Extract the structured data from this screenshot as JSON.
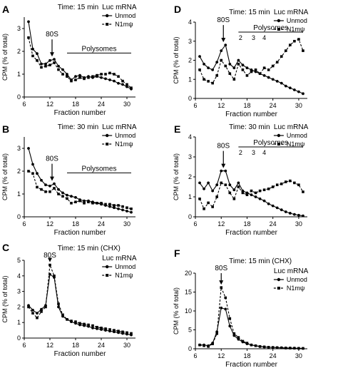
{
  "chart_data": [
    {
      "panel": "A",
      "type": "line",
      "time_label": "Time: 15 min",
      "mrna_label": "Luc mRNA",
      "ylabel": "CPM (% of total)",
      "xlabel": "Fraction number",
      "xlim": [
        6,
        32
      ],
      "xticks": [
        6,
        12,
        18,
        24,
        30
      ],
      "ylim": [
        0,
        3.5
      ],
      "yticks": [
        0,
        1,
        2,
        3
      ],
      "x": [
        7,
        8,
        9,
        10,
        11,
        12,
        13,
        14,
        15,
        16,
        17,
        18,
        19,
        20,
        21,
        22,
        23,
        24,
        25,
        26,
        27,
        28,
        29,
        30,
        31
      ],
      "series": [
        {
          "name": "Unmod",
          "values": [
            3.3,
            2.1,
            1.9,
            1.45,
            1.45,
            1.6,
            1.65,
            1.35,
            1.2,
            1.0,
            0.75,
            0.9,
            0.95,
            0.85,
            0.9,
            0.85,
            0.9,
            0.85,
            0.8,
            0.75,
            0.7,
            0.6,
            0.55,
            0.45,
            0.35
          ]
        },
        {
          "name": "N1mψ",
          "values": [
            2.6,
            1.8,
            1.6,
            1.3,
            1.35,
            1.4,
            1.5,
            1.2,
            1.0,
            0.9,
            0.7,
            0.75,
            0.85,
            0.8,
            0.85,
            0.9,
            0.95,
            1.0,
            1.0,
            1.05,
            1.0,
            0.9,
            0.7,
            0.55,
            0.4
          ]
        }
      ],
      "annotations": {
        "peak": "80S",
        "peak_x": 12.5,
        "region": "Polysomes",
        "region_x": [
          16,
          31
        ]
      }
    },
    {
      "panel": "B",
      "type": "line",
      "time_label": "Time: 30 min",
      "mrna_label": "Luc mRNA",
      "ylabel": "CPM (% of total)",
      "xlabel": "Fraction number",
      "xlim": [
        6,
        32
      ],
      "xticks": [
        6,
        12,
        18,
        24,
        30
      ],
      "ylim": [
        0,
        3.5
      ],
      "yticks": [
        0,
        1,
        2,
        3
      ],
      "x": [
        7,
        8,
        9,
        10,
        11,
        12,
        13,
        14,
        15,
        16,
        17,
        18,
        19,
        20,
        21,
        22,
        23,
        24,
        25,
        26,
        27,
        28,
        29,
        30,
        31
      ],
      "series": [
        {
          "name": "Unmod",
          "values": [
            3.0,
            2.3,
            1.9,
            1.6,
            1.4,
            1.35,
            1.45,
            1.2,
            1.05,
            0.95,
            0.9,
            0.85,
            0.75,
            0.7,
            0.7,
            0.65,
            0.6,
            0.55,
            0.5,
            0.45,
            0.4,
            0.35,
            0.3,
            0.25,
            0.2
          ]
        },
        {
          "name": "N1mψ",
          "values": [
            2.0,
            1.9,
            1.3,
            1.2,
            1.1,
            1.1,
            1.25,
            1.0,
            0.9,
            0.8,
            0.6,
            0.65,
            0.7,
            0.6,
            0.65,
            0.6,
            0.6,
            0.6,
            0.55,
            0.55,
            0.5,
            0.5,
            0.45,
            0.4,
            0.35
          ]
        }
      ],
      "annotations": {
        "peak": "80S",
        "peak_x": 12.5,
        "region": "Polysomes",
        "region_x": [
          16,
          31
        ]
      }
    },
    {
      "panel": "C",
      "type": "line",
      "time_label": "Time: 15 min (CHX)",
      "mrna_label": "Luc mRNA",
      "ylabel": "CPM (% of total)",
      "xlabel": "Fraction number",
      "xlim": [
        6,
        32
      ],
      "xticks": [
        6,
        12,
        18,
        24,
        30
      ],
      "ylim": [
        0,
        5
      ],
      "yticks": [
        0,
        1,
        2,
        3,
        4,
        5
      ],
      "x": [
        7,
        8,
        9,
        10,
        11,
        12,
        13,
        14,
        15,
        16,
        17,
        18,
        19,
        20,
        21,
        22,
        23,
        24,
        25,
        26,
        27,
        28,
        29,
        30,
        31
      ],
      "series": [
        {
          "name": "Unmod",
          "values": [
            2.1,
            1.8,
            1.6,
            1.85,
            2.1,
            4.1,
            3.9,
            2.0,
            1.4,
            1.2,
            1.05,
            0.95,
            0.85,
            0.8,
            0.75,
            0.65,
            0.6,
            0.55,
            0.5,
            0.45,
            0.4,
            0.35,
            0.3,
            0.25,
            0.2
          ]
        },
        {
          "name": "N1mψ",
          "values": [
            2.0,
            1.6,
            1.3,
            1.7,
            2.0,
            4.7,
            4.0,
            2.2,
            1.5,
            1.2,
            1.1,
            1.05,
            0.95,
            0.9,
            0.85,
            0.8,
            0.7,
            0.65,
            0.6,
            0.55,
            0.5,
            0.45,
            0.4,
            0.35,
            0.3
          ]
        }
      ],
      "annotations": {
        "peak": "80S",
        "peak_x": 12
      }
    },
    {
      "panel": "D",
      "type": "line",
      "time_label": "Time: 15 min",
      "mrna_label": "Luc mRNA",
      "ylabel": "CPM (% of total)",
      "xlabel": "Fraction number",
      "xlim": [
        6,
        32
      ],
      "xticks": [
        6,
        12,
        18,
        24,
        30
      ],
      "ylim": [
        0,
        4
      ],
      "yticks": [
        0,
        1,
        2,
        3,
        4
      ],
      "x": [
        7,
        8,
        9,
        10,
        11,
        12,
        13,
        14,
        15,
        16,
        17,
        18,
        19,
        20,
        21,
        22,
        23,
        24,
        25,
        26,
        27,
        28,
        29,
        30,
        31
      ],
      "series": [
        {
          "name": "Unmod",
          "values": [
            2.2,
            1.8,
            1.6,
            1.5,
            1.9,
            2.5,
            2.8,
            1.8,
            1.6,
            2.0,
            1.75,
            1.6,
            1.5,
            1.4,
            1.3,
            1.2,
            1.1,
            1.0,
            0.9,
            0.8,
            0.65,
            0.55,
            0.45,
            0.35,
            0.25
          ]
        },
        {
          "name": "N1mψ",
          "values": [
            1.5,
            1.0,
            0.9,
            0.8,
            1.2,
            2.0,
            1.7,
            1.3,
            1.0,
            1.8,
            1.5,
            1.2,
            1.4,
            1.5,
            1.3,
            1.6,
            1.5,
            1.7,
            1.9,
            2.2,
            2.5,
            2.8,
            3.0,
            3.1,
            2.5
          ]
        }
      ],
      "annotations": {
        "peak": "80S",
        "peak_x": 12.5,
        "region": "Polysomes",
        "region_x": [
          16,
          31
        ],
        "peak_labels": [
          {
            "text": "2",
            "x": 16.5
          },
          {
            "text": "3",
            "x": 19.5
          },
          {
            "text": "4",
            "x": 22
          }
        ]
      }
    },
    {
      "panel": "E",
      "type": "line",
      "time_label": "Time: 30 min",
      "mrna_label": "Luc mRNA",
      "ylabel": "CPM (% of total)",
      "xlabel": "Fraction number",
      "xlim": [
        6,
        32
      ],
      "xticks": [
        6,
        12,
        18,
        24,
        30
      ],
      "ylim": [
        0,
        4
      ],
      "yticks": [
        0,
        1,
        2,
        3,
        4
      ],
      "x": [
        7,
        8,
        9,
        10,
        11,
        12,
        13,
        14,
        15,
        16,
        17,
        18,
        19,
        20,
        21,
        22,
        23,
        24,
        25,
        26,
        27,
        28,
        29,
        30,
        31
      ],
      "series": [
        {
          "name": "Unmod",
          "values": [
            1.7,
            1.4,
            1.7,
            1.3,
            1.6,
            2.3,
            2.3,
            1.6,
            1.35,
            1.7,
            1.3,
            1.2,
            1.1,
            1.0,
            0.9,
            0.8,
            0.65,
            0.55,
            0.45,
            0.35,
            0.25,
            0.18,
            0.12,
            0.08,
            0.05
          ]
        },
        {
          "name": "N1mψ",
          "values": [
            0.9,
            0.4,
            0.7,
            0.5,
            1.0,
            1.7,
            1.6,
            1.2,
            0.9,
            1.5,
            1.2,
            1.1,
            1.3,
            1.2,
            1.3,
            1.35,
            1.4,
            1.5,
            1.6,
            1.65,
            1.75,
            1.8,
            1.7,
            1.6,
            1.25
          ]
        }
      ],
      "annotations": {
        "peak": "80S",
        "peak_x": 12.5,
        "region": "Polysomes",
        "region_x": [
          16,
          31
        ],
        "peak_labels": [
          {
            "text": "2",
            "x": 16.5
          },
          {
            "text": "3",
            "x": 19.5
          },
          {
            "text": "4",
            "x": 22
          }
        ]
      }
    },
    {
      "panel": "F",
      "type": "line",
      "time_label": "Time: 15 min (CHX)",
      "mrna_label": "Luc mRNA",
      "ylabel": "CPM (% of total)",
      "xlabel": "Fraction number",
      "xlim": [
        6,
        32
      ],
      "xticks": [
        6,
        12,
        18,
        24,
        30
      ],
      "ylim": [
        0,
        20
      ],
      "yticks": [
        0,
        5,
        10,
        15,
        20
      ],
      "x": [
        7,
        8,
        9,
        10,
        11,
        12,
        13,
        14,
        15,
        16,
        17,
        18,
        19,
        20,
        21,
        22,
        23,
        24,
        25,
        26,
        27,
        28,
        29,
        30,
        31
      ],
      "series": [
        {
          "name": "Unmod",
          "values": [
            1.0,
            1.0,
            0.8,
            1.5,
            4.5,
            10.8,
            10.5,
            6.0,
            3.5,
            2.5,
            1.8,
            1.3,
            1.0,
            0.8,
            0.6,
            0.5,
            0.4,
            0.35,
            0.3,
            0.25,
            0.2,
            0.18,
            0.15,
            0.12,
            0.1
          ]
        },
        {
          "name": "N1mψ",
          "values": [
            1.0,
            0.8,
            0.6,
            1.3,
            4.0,
            16.2,
            13.5,
            8.0,
            4.0,
            3.0,
            2.0,
            1.5,
            1.0,
            0.8,
            0.6,
            0.5,
            0.4,
            0.35,
            0.3,
            0.25,
            0.2,
            0.18,
            0.15,
            0.12,
            0.1
          ]
        }
      ],
      "annotations": {
        "peak": "80S",
        "peak_x": 12
      }
    }
  ]
}
